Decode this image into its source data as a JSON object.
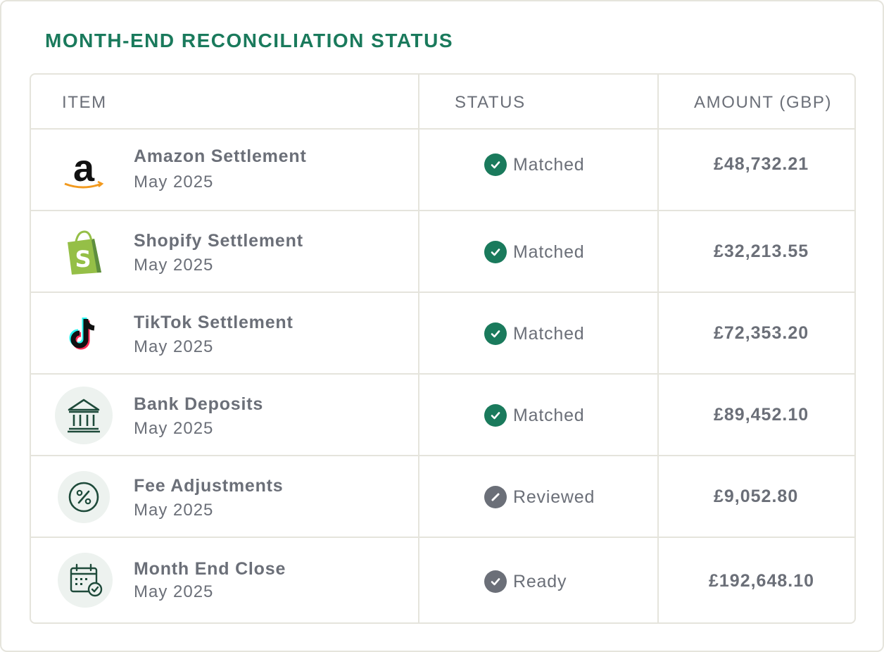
{
  "title": "MONTH-END RECONCILIATION STATUS",
  "colors": {
    "accent": "#1a7a5c",
    "text": "#6b6f78",
    "border": "#e5e4dc",
    "status_matched": "#1a7a5c",
    "status_neutral": "#6b6f78"
  },
  "columns": {
    "item": "ITEM",
    "status": "STATUS",
    "amount": "AMOUNT (GBP)"
  },
  "rows": [
    {
      "icon": "amazon-logo-icon",
      "name": "Amazon Settlement",
      "period": "May 2025",
      "status": "Matched",
      "status_icon": "check-circle-icon",
      "amount": "£48,732.21"
    },
    {
      "icon": "shopify-logo-icon",
      "name": "Shopify Settlement",
      "period": "May 2025",
      "status": "Matched",
      "status_icon": "check-circle-icon",
      "amount": "£32,213.55"
    },
    {
      "icon": "tiktok-logo-icon",
      "name": "TikTok Settlement",
      "period": "May 2025",
      "status": "Matched",
      "status_icon": "check-circle-icon",
      "amount": "£72,353.20"
    },
    {
      "icon": "bank-icon",
      "name": "Bank Deposits",
      "period": "May 2025",
      "status": "Matched",
      "status_icon": "check-circle-icon",
      "amount": "£89,452.10"
    },
    {
      "icon": "percent-icon",
      "name": "Fee Adjustments",
      "period": "May 2025",
      "status": "Reviewed",
      "status_icon": "pencil-circle-icon",
      "amount": "£9,052.80"
    },
    {
      "icon": "calendar-check-icon",
      "name": "Month End Close",
      "period": "May 2025",
      "status": "Ready",
      "status_icon": "check-circle-grey-icon",
      "amount": "£192,648.10"
    }
  ]
}
